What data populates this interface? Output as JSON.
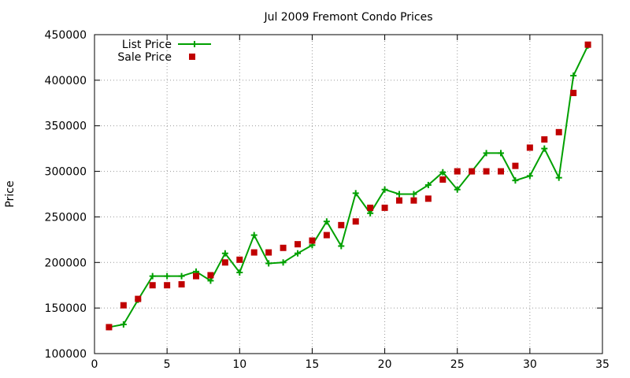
{
  "chart_data": {
    "type": "line",
    "title": "Jul 2009 Fremont Condo Prices",
    "xlabel": "",
    "ylabel": "Price",
    "xlim": [
      0,
      35
    ],
    "ylim": [
      100000,
      450000
    ],
    "xticks": [
      0,
      5,
      10,
      15,
      20,
      25,
      30,
      35
    ],
    "yticks": [
      100000,
      150000,
      200000,
      250000,
      300000,
      350000,
      400000,
      450000
    ],
    "grid": true,
    "legend_position": "top-left",
    "series": [
      {
        "name": "List Price",
        "style": "lines+points",
        "marker": "plus",
        "color": "#00a000",
        "x": [
          1,
          2,
          3,
          4,
          5,
          6,
          7,
          8,
          9,
          10,
          11,
          12,
          13,
          14,
          15,
          16,
          17,
          18,
          19,
          20,
          21,
          22,
          23,
          24,
          25,
          26,
          27,
          28,
          29,
          30,
          31,
          32,
          33,
          34
        ],
        "y": [
          129000,
          132000,
          159000,
          185000,
          185000,
          185000,
          190000,
          180000,
          210000,
          189000,
          230000,
          199000,
          200000,
          210000,
          219000,
          245000,
          218000,
          276000,
          254000,
          280000,
          275000,
          275000,
          285000,
          299000,
          280000,
          300000,
          320000,
          320000,
          290000,
          295000,
          325000,
          293000,
          405000,
          438000
        ]
      },
      {
        "name": "Sale Price",
        "style": "points",
        "marker": "square",
        "color": "#c00000",
        "x": [
          1,
          2,
          3,
          4,
          5,
          6,
          7,
          8,
          9,
          10,
          11,
          12,
          13,
          14,
          15,
          16,
          17,
          18,
          19,
          20,
          21,
          22,
          23,
          24,
          25,
          26,
          27,
          28,
          29,
          30,
          31,
          32,
          33,
          34
        ],
        "y": [
          129000,
          153000,
          160000,
          175000,
          175000,
          176000,
          185000,
          186000,
          200000,
          203000,
          211000,
          211000,
          216000,
          220000,
          224000,
          230000,
          241000,
          245000,
          260000,
          260000,
          268000,
          268000,
          270000,
          291000,
          300000,
          300000,
          300000,
          300000,
          306000,
          326000,
          335000,
          343000,
          386000,
          439000
        ]
      }
    ]
  }
}
